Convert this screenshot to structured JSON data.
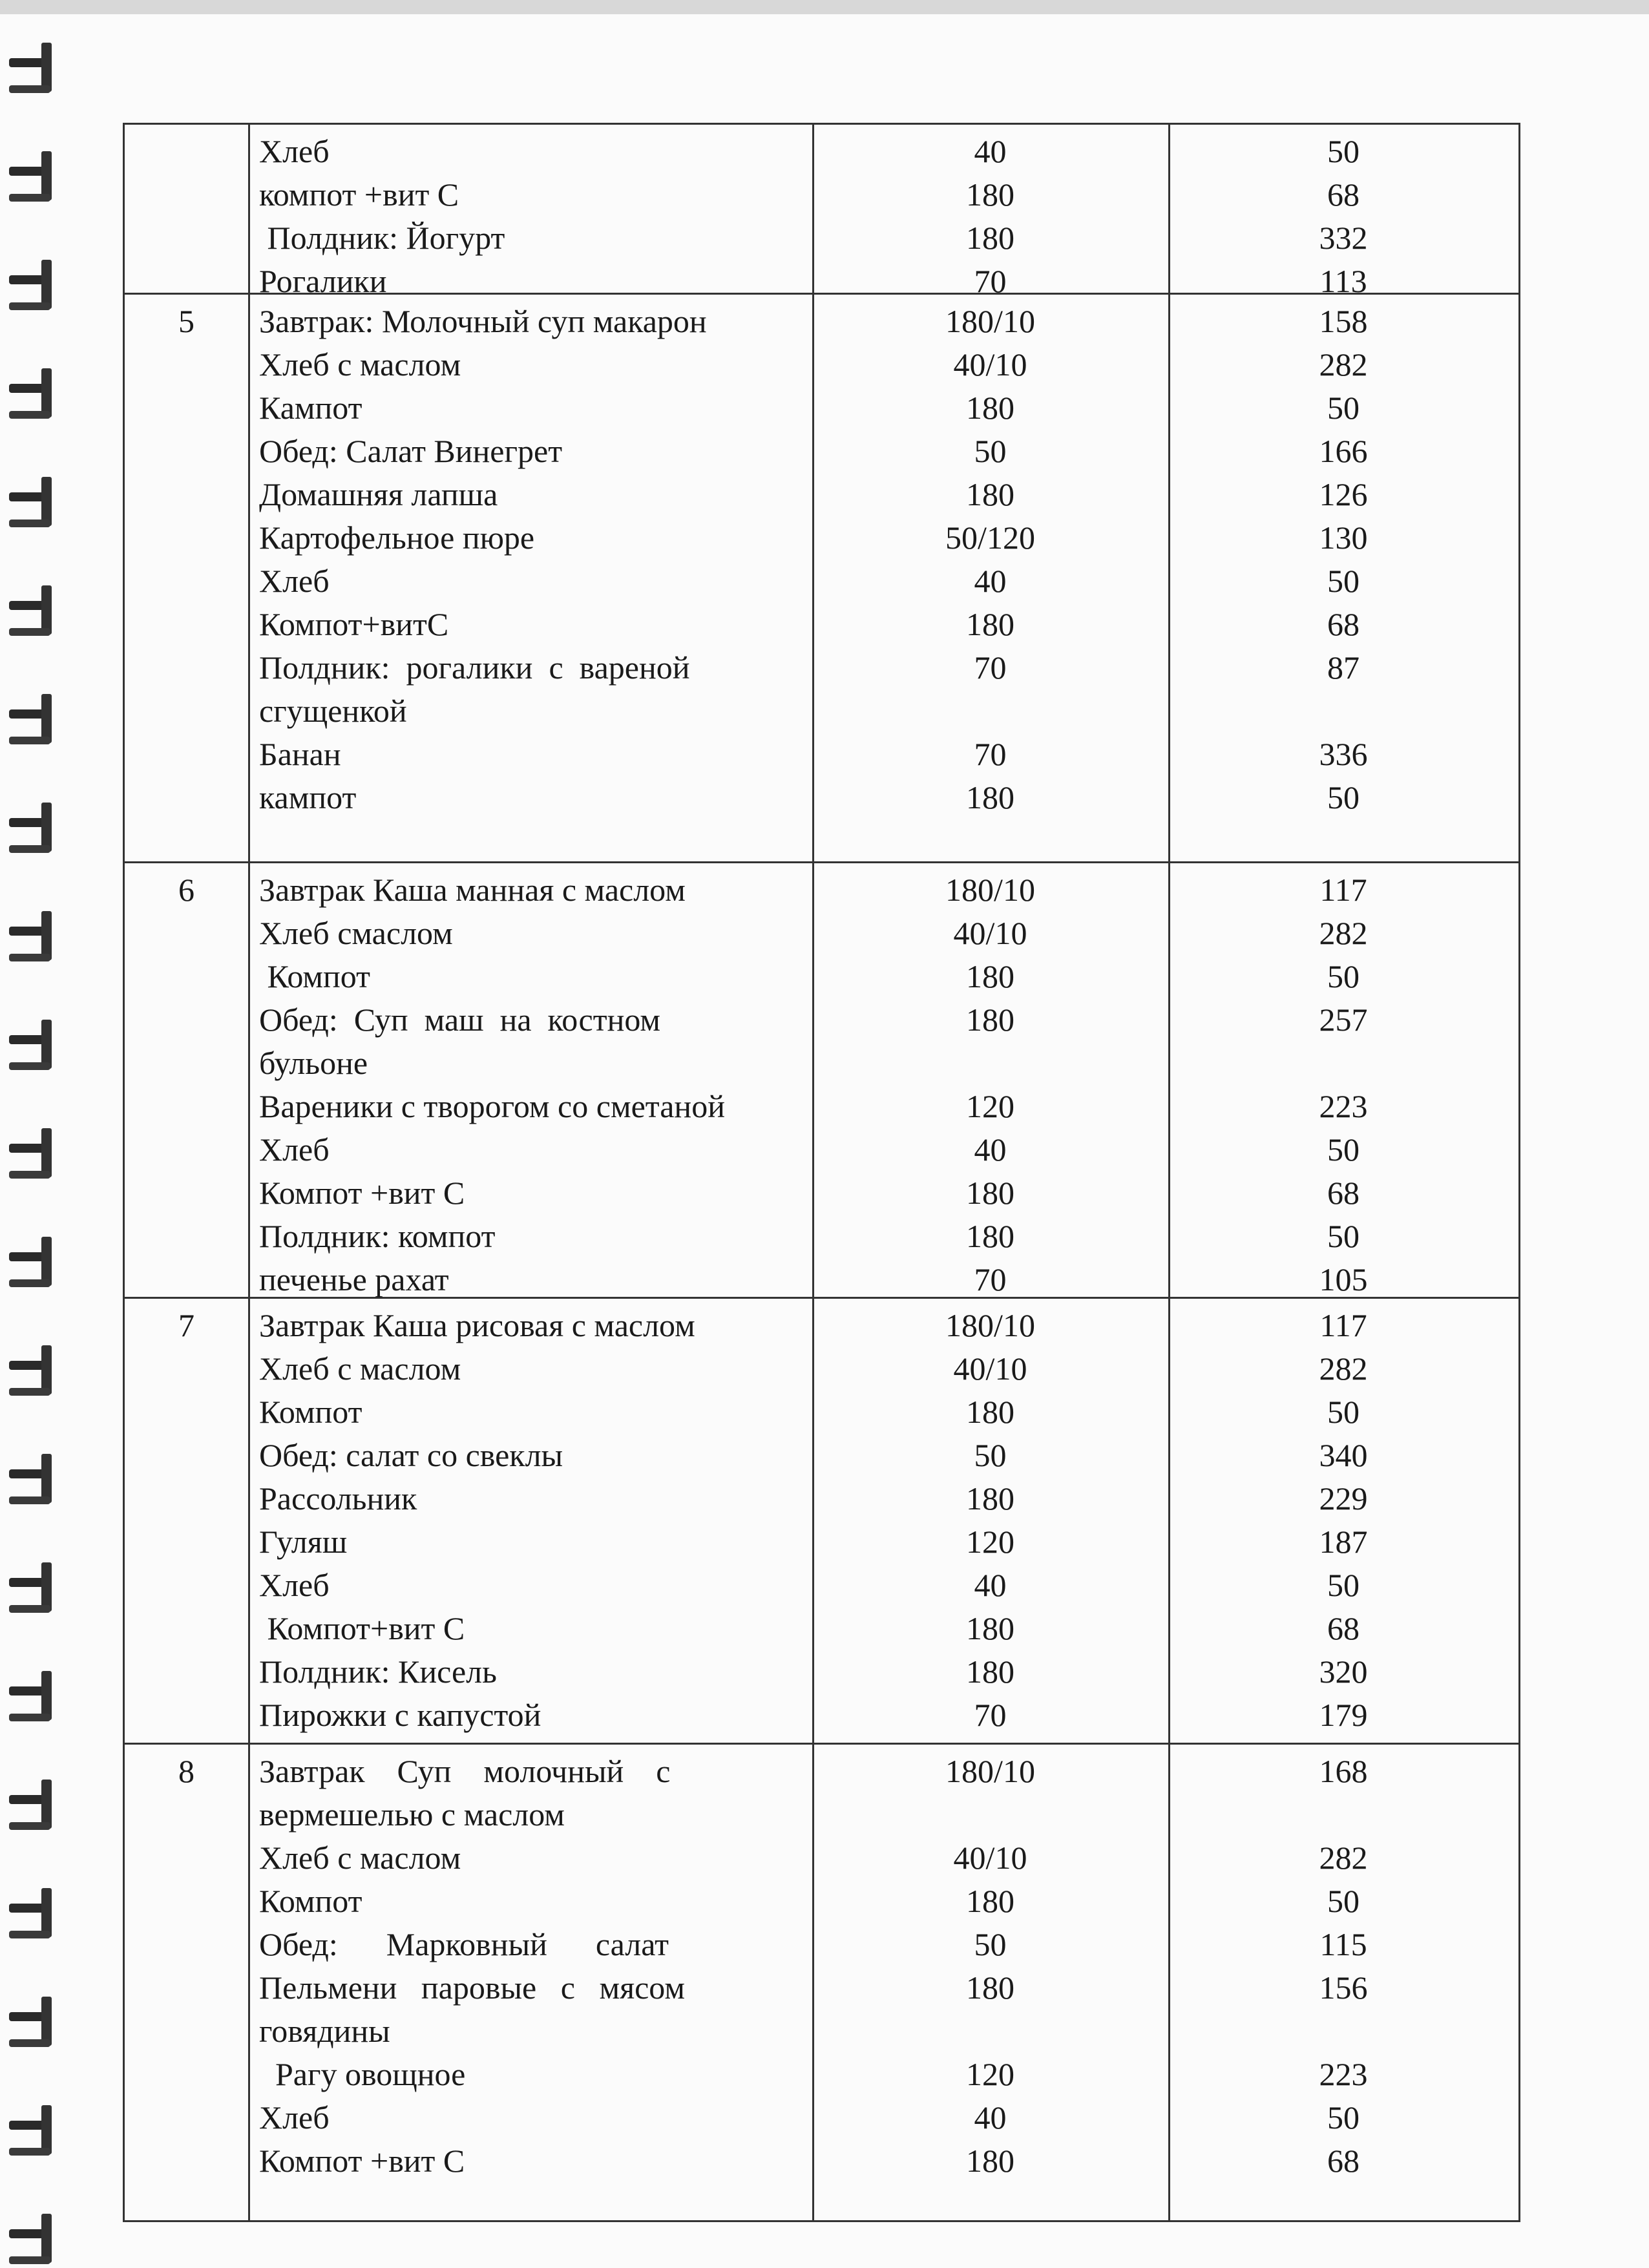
{
  "sections": [
    {
      "day": "",
      "lines": [
        [
          "Хлеб",
          "40",
          "50"
        ],
        [
          "компот +вит С",
          "180",
          "68"
        ],
        [
          " Полдник: Йогурт",
          "180",
          "332"
        ],
        [
          "Рогалики",
          "70",
          "113"
        ]
      ]
    },
    {
      "day": "5",
      "lines": [
        [
          "Завтрак: Молочный суп макарон",
          "180/10",
          "158"
        ],
        [
          "Хлеб с маслом",
          "40/10",
          "282"
        ],
        [
          "Кампот",
          "180",
          "50"
        ],
        [
          "Обед: Салат Винегрет",
          "50",
          "166"
        ],
        [
          "Домашняя лапша",
          "180",
          "126"
        ],
        [
          "Картофельное пюре",
          "50/120",
          "130"
        ],
        [
          "Хлеб",
          "40",
          "50"
        ],
        [
          "Компот+витС",
          "180",
          "68"
        ],
        [
          "Полдник:  рогалики  с  вареной",
          "70",
          "87"
        ],
        [
          "сгущенкой",
          "",
          ""
        ],
        [
          "Банан",
          "70",
          "336"
        ],
        [
          "кампот",
          "180",
          "50"
        ]
      ]
    },
    {
      "day": "6",
      "lines": [
        [
          "Завтрак Каша манная с маслом",
          "180/10",
          "117"
        ],
        [
          "Хлеб смаслом",
          "40/10",
          "282"
        ],
        [
          " Компот",
          "180",
          "50"
        ],
        [
          "Обед:  Суп  маш  на  костном",
          "180",
          "257"
        ],
        [
          "бульоне",
          "",
          ""
        ],
        [
          "Вареники с творогом со сметаной",
          "120",
          "223"
        ],
        [
          "Хлеб",
          "40",
          "50"
        ],
        [
          "Компот +вит С",
          "180",
          "68"
        ],
        [
          "Полдник: компот",
          "180",
          "50"
        ],
        [
          "печенье рахат",
          "70",
          "105"
        ]
      ]
    },
    {
      "day": "7",
      "lines": [
        [
          "Завтрак Каша рисовая с маслом",
          "180/10",
          "117"
        ],
        [
          "Хлеб с маслом",
          "40/10",
          "282"
        ],
        [
          "Компот",
          "180",
          "50"
        ],
        [
          "Обед: салат со свеклы",
          "50",
          "340"
        ],
        [
          "Рассольник",
          "180",
          "229"
        ],
        [
          "Гуляш",
          "120",
          "187"
        ],
        [
          "Хлеб",
          "40",
          "50"
        ],
        [
          " Компот+вит С",
          "180",
          "68"
        ],
        [
          "Полдник: Кисель",
          "180",
          "320"
        ],
        [
          "Пирожки с капустой",
          "70",
          "179"
        ]
      ]
    },
    {
      "day": "8",
      "lines": [
        [
          "Завтрак    Суп    молочный    с",
          "180/10",
          "168"
        ],
        [
          "вермешелью с маслом",
          "",
          ""
        ],
        [
          "Хлеб с маслом",
          "40/10",
          "282"
        ],
        [
          "Компот",
          "180",
          "50"
        ],
        [
          "Обед:      Марковный      салат",
          "50",
          "115"
        ],
        [
          "Пельмени   паровые   с   мясом",
          "180",
          "156"
        ],
        [
          "говядины",
          "",
          ""
        ],
        [
          "  Рагу овощное",
          "120",
          "223"
        ],
        [
          "Хлеб",
          "40",
          "50"
        ],
        [
          "Компот +вит С",
          "180",
          "68"
        ]
      ]
    }
  ]
}
